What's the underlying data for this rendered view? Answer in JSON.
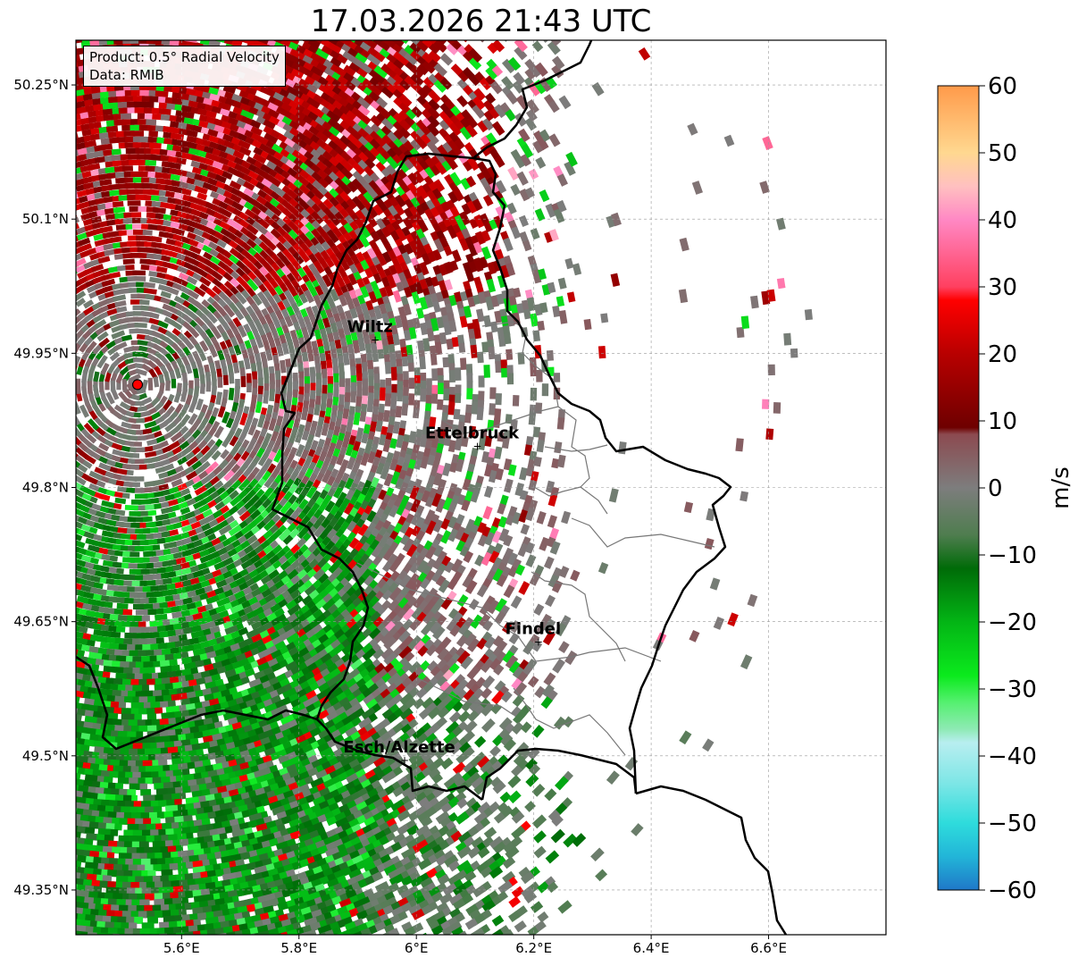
{
  "title": "17.03.2026 21:43 UTC",
  "info_box": {
    "product": "Product: 0.5° Radial Velocity",
    "data": "Data: RMIB"
  },
  "map": {
    "lon_range": [
      5.42,
      6.8
    ],
    "lat_range": [
      49.3,
      50.3
    ],
    "lon_ticks": [
      {
        "value": 5.6,
        "label": "5.6°E"
      },
      {
        "value": 5.8,
        "label": "5.8°E"
      },
      {
        "value": 6.0,
        "label": "6°E"
      },
      {
        "value": 6.2,
        "label": "6.2°E"
      },
      {
        "value": 6.4,
        "label": "6.4°E"
      },
      {
        "value": 6.6,
        "label": "6.6°E"
      }
    ],
    "lat_ticks": [
      {
        "value": 50.25,
        "label": "50.25°N"
      },
      {
        "value": 50.1,
        "label": "50.1°N"
      },
      {
        "value": 49.95,
        "label": "49.95°N"
      },
      {
        "value": 49.8,
        "label": "49.8°N"
      },
      {
        "value": 49.65,
        "label": "49.65°N"
      },
      {
        "value": 49.5,
        "label": "49.5°N"
      },
      {
        "value": 49.35,
        "label": "49.35°N"
      }
    ],
    "radar_site": {
      "lon": 5.525,
      "lat": 49.915,
      "color": "#ff0000"
    },
    "cities": [
      {
        "name": "Wiltz",
        "lon": 5.93,
        "lat": 49.966
      },
      {
        "name": "Ettelbruck",
        "lon": 6.104,
        "lat": 49.847
      },
      {
        "name": "Findel",
        "lon": 6.208,
        "lat": 49.628
      },
      {
        "name": "Esch/Alzette",
        "lon": 5.98,
        "lat": 49.496
      }
    ]
  },
  "colorbar": {
    "label": "m/s",
    "min": -60,
    "max": 60,
    "ticks": [
      {
        "value": 60,
        "label": "60"
      },
      {
        "value": 50,
        "label": "50"
      },
      {
        "value": 40,
        "label": "40"
      },
      {
        "value": 30,
        "label": "30"
      },
      {
        "value": 20,
        "label": "20"
      },
      {
        "value": 10,
        "label": "10"
      },
      {
        "value": 0,
        "label": "0"
      },
      {
        "value": -10,
        "label": "−10"
      },
      {
        "value": -20,
        "label": "−20"
      },
      {
        "value": -30,
        "label": "−30"
      },
      {
        "value": -40,
        "label": "−40"
      },
      {
        "value": -50,
        "label": "−50"
      },
      {
        "value": -60,
        "label": "−60"
      }
    ],
    "stops": [
      {
        "value": -60,
        "color": "#1f78c8"
      },
      {
        "value": -55,
        "color": "#22b5d8"
      },
      {
        "value": -50,
        "color": "#2edcdc"
      },
      {
        "value": -44,
        "color": "#7ee6e6"
      },
      {
        "value": -38,
        "color": "#b8eef0"
      },
      {
        "value": -36,
        "color": "#8eeab4"
      },
      {
        "value": -32,
        "color": "#55f070"
      },
      {
        "value": -28,
        "color": "#0bea1d"
      },
      {
        "value": -20,
        "color": "#03b515"
      },
      {
        "value": -12,
        "color": "#006b08"
      },
      {
        "value": -7,
        "color": "#4f7d4f"
      },
      {
        "value": 0,
        "color": "#7d7d7d"
      },
      {
        "value": 8,
        "color": "#8c4a50"
      },
      {
        "value": 9,
        "color": "#6e0000"
      },
      {
        "value": 20,
        "color": "#b80000"
      },
      {
        "value": 28,
        "color": "#ff0000"
      },
      {
        "value": 30,
        "color": "#ff4060"
      },
      {
        "value": 40,
        "color": "#ff88c4"
      },
      {
        "value": 45,
        "color": "#ffc0c0"
      },
      {
        "value": 50,
        "color": "#ffd890"
      },
      {
        "value": 60,
        "color": "#ff9a4a"
      }
    ]
  }
}
